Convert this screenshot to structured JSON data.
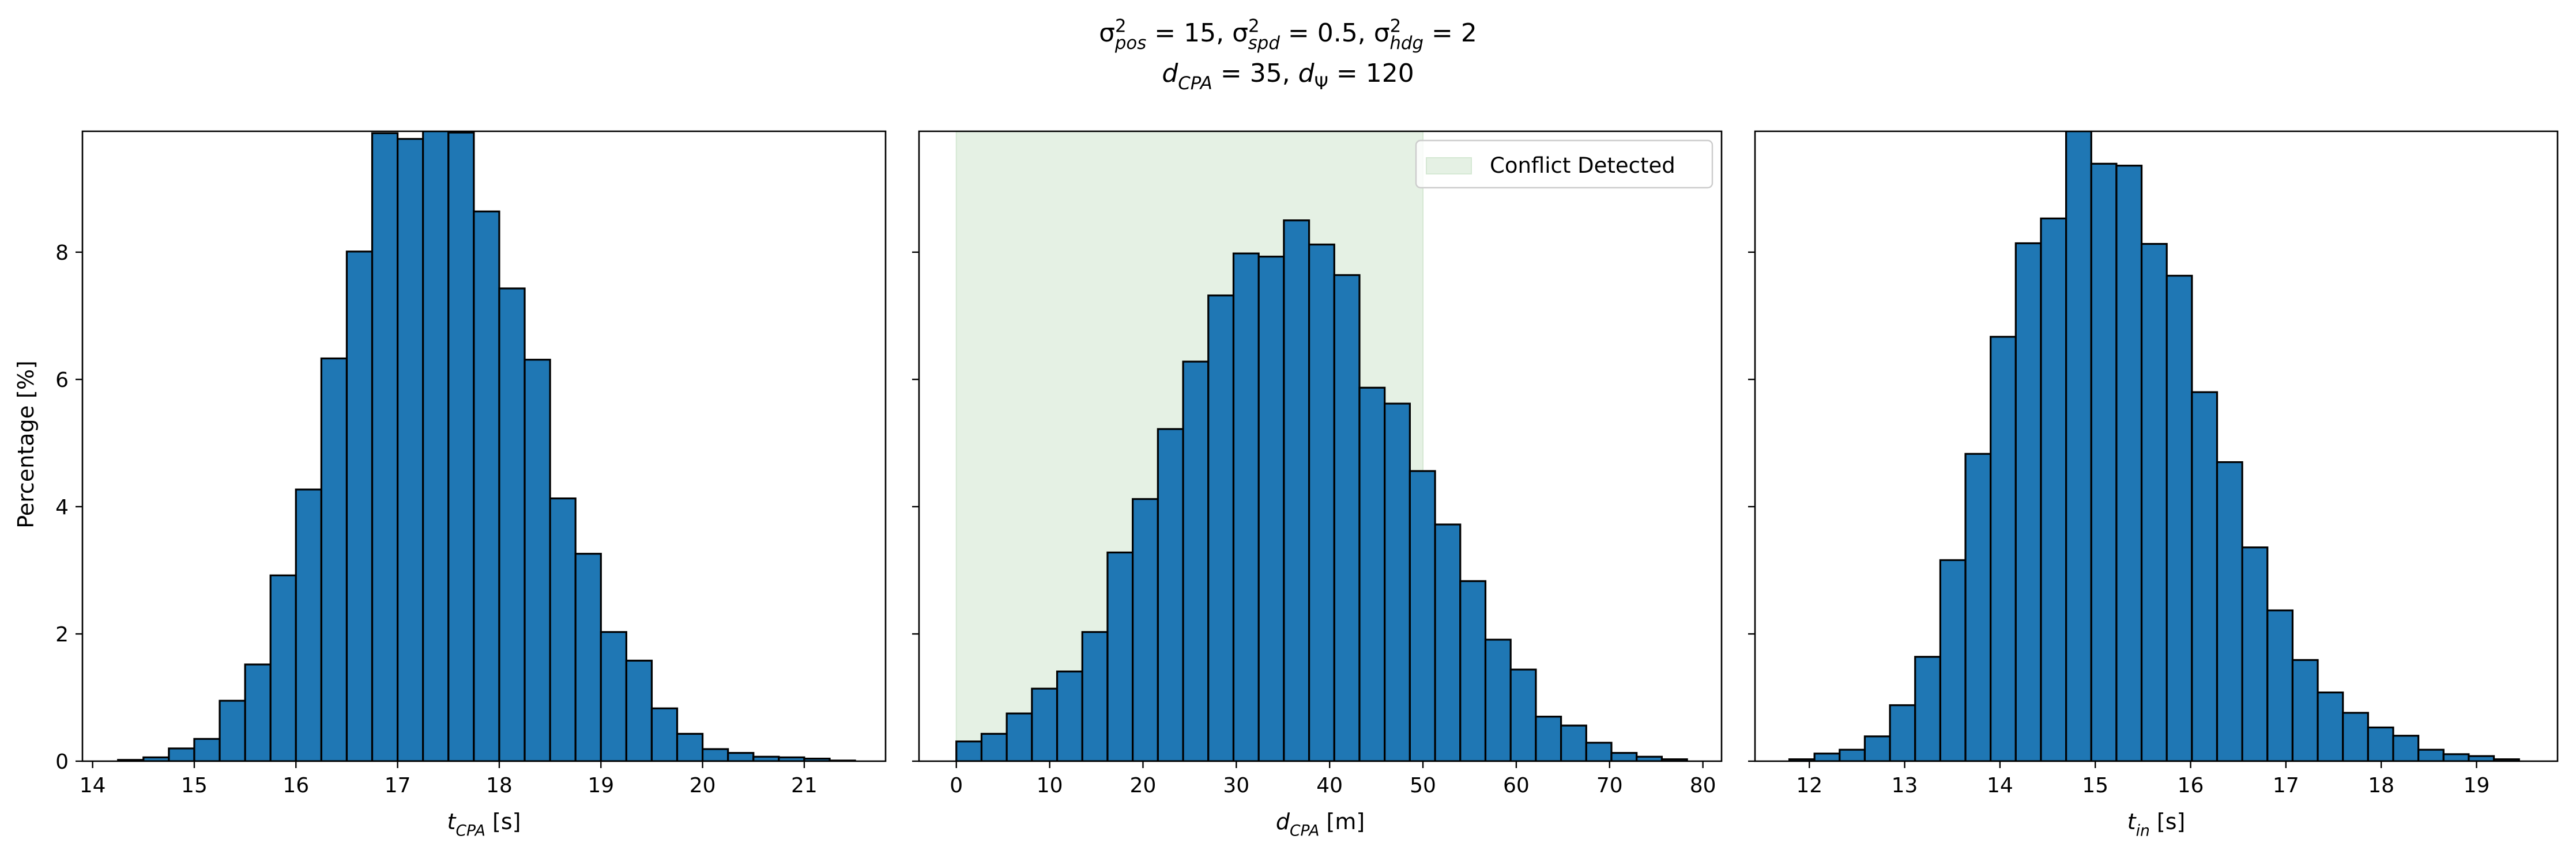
{
  "figure": {
    "title_lines": [
      [
        {
          "t": "σ",
          "s": "n"
        },
        {
          "t": "2",
          "s": "sup"
        },
        {
          "t": "pos",
          "s": "sub"
        },
        {
          "t": " = 15, ",
          "s": "n"
        },
        {
          "t": "σ",
          "s": "n"
        },
        {
          "t": "2",
          "s": "sup"
        },
        {
          "t": "spd",
          "s": "sub"
        },
        {
          "t": " = 0.5, ",
          "s": "n"
        },
        {
          "t": "σ",
          "s": "n"
        },
        {
          "t": "2",
          "s": "sup"
        },
        {
          "t": "hdg",
          "s": "sub"
        },
        {
          "t": " = 2",
          "s": "n"
        }
      ],
      [
        {
          "t": "d",
          "s": "n"
        },
        {
          "t": "CPA",
          "s": "sub"
        },
        {
          "t": " = 35, ",
          "s": "n"
        },
        {
          "t": "d",
          "s": "n"
        },
        {
          "t": "Ψ",
          "s": "sub"
        },
        {
          "t": " = 120",
          "s": "n"
        }
      ]
    ],
    "ylabel": "Percentage [%]",
    "bar_color": "#1f77b4",
    "edge_color": "#000000",
    "shade_color": "#d5e8d4"
  },
  "chart_data": [
    {
      "type": "bar",
      "xlabel": [
        {
          "t": "t",
          "s": "n"
        },
        {
          "t": "CPA",
          "s": "sub"
        },
        {
          "t": " [s]",
          "s": "n"
        }
      ],
      "xlim": [
        13.9,
        21.8
      ],
      "ylim": [
        0,
        9.9
      ],
      "xticks": [
        14,
        15,
        16,
        17,
        18,
        19,
        20,
        21
      ],
      "yticks": [
        0,
        2,
        4,
        6,
        8
      ],
      "bin_start": 14.25,
      "bin_width": 0.25,
      "values": [
        0.02,
        0.06,
        0.2,
        0.35,
        0.95,
        1.52,
        2.92,
        4.27,
        6.33,
        8.01,
        9.87,
        9.78,
        9.9,
        9.88,
        8.64,
        7.43,
        6.31,
        4.13,
        3.26,
        2.03,
        1.58,
        0.83,
        0.43,
        0.19,
        0.13,
        0.07,
        0.06,
        0.04,
        0.01
      ]
    },
    {
      "type": "bar",
      "xlabel": [
        {
          "t": "d",
          "s": "n"
        },
        {
          "t": "CPA",
          "s": "sub"
        },
        {
          "t": " [m]",
          "s": "n"
        }
      ],
      "xlim": [
        -4,
        82
      ],
      "ylim": [
        0,
        9.9
      ],
      "xticks": [
        0,
        10,
        20,
        30,
        40,
        50,
        60,
        70,
        80
      ],
      "yticks": [
        0,
        2,
        4,
        6,
        8
      ],
      "bin_start": 0,
      "bin_width": 2.7,
      "values": [
        0.31,
        0.43,
        0.75,
        1.14,
        1.41,
        2.03,
        3.28,
        4.12,
        5.22,
        6.28,
        7.32,
        7.98,
        7.93,
        8.5,
        8.12,
        7.64,
        5.87,
        5.62,
        4.56,
        3.72,
        2.83,
        1.91,
        1.44,
        0.7,
        0.56,
        0.29,
        0.13,
        0.07,
        0.03
      ],
      "shade": {
        "from": 0,
        "to": 50
      },
      "legend": {
        "label": "Conflict Detected",
        "position": "upper-right"
      }
    },
    {
      "type": "bar",
      "xlabel": [
        {
          "t": "t",
          "s": "n"
        },
        {
          "t": "in",
          "s": "sub"
        },
        {
          "t": " [s]",
          "s": "n"
        }
      ],
      "xlim": [
        11.43,
        19.85
      ],
      "ylim": [
        0,
        9.9
      ],
      "xticks": [
        12,
        13,
        14,
        15,
        16,
        17,
        18,
        19
      ],
      "yticks": [
        0,
        2,
        4,
        6,
        8
      ],
      "bin_start": 11.79,
      "bin_width": 0.264,
      "values": [
        0.03,
        0.12,
        0.18,
        0.39,
        0.88,
        1.64,
        3.16,
        4.83,
        6.67,
        8.14,
        8.53,
        9.9,
        9.39,
        9.36,
        8.13,
        7.63,
        5.8,
        4.7,
        3.36,
        2.37,
        1.59,
        1.08,
        0.76,
        0.53,
        0.4,
        0.18,
        0.11,
        0.08,
        0.03
      ]
    }
  ]
}
